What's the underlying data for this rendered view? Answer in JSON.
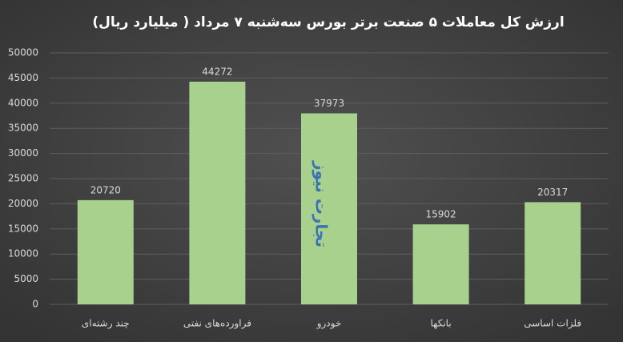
{
  "chart_data": {
    "type": "bar",
    "title": "ارزش کل معاملات ۵ صنعت برتر بورس سه‌شنبه ۷ مرداد ( میلیارد ریال)",
    "categories": [
      "چند رشته‌ای",
      "فراورده‌های نفتی",
      "خودرو",
      "بانکها",
      "فلزات اساسی"
    ],
    "values": [
      20720,
      44272,
      37973,
      15902,
      20317
    ],
    "color": "#a9d18e",
    "ylim": [
      0,
      50000
    ],
    "yticks": [
      0,
      5000,
      10000,
      15000,
      20000,
      25000,
      30000,
      35000,
      40000,
      45000,
      50000
    ],
    "grid": true,
    "watermark": "تجارت نیوز"
  }
}
